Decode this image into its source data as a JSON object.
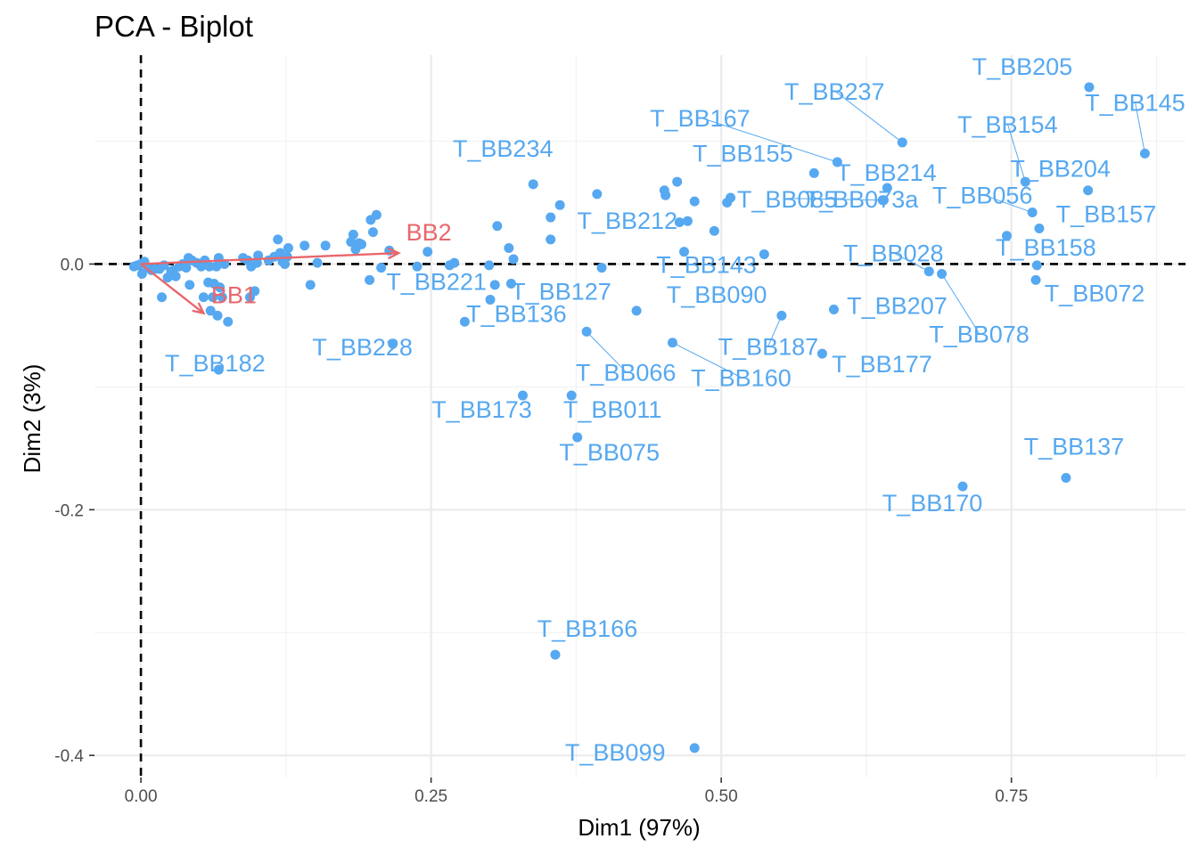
{
  "chart_data": {
    "type": "scatter",
    "title": "PCA - Biplot",
    "xlabel": "Dim1 (97%)",
    "ylabel": "Dim2 (3%)",
    "xlim": [
      -0.04,
      0.9
    ],
    "ylim": [
      -0.418,
      0.17
    ],
    "x_ticks": [
      0.0,
      0.25,
      0.5,
      0.75
    ],
    "x_tick_labels": [
      "0.00",
      "0.25",
      "0.50",
      "0.75"
    ],
    "y_ticks": [
      0.0,
      -0.2,
      -0.4
    ],
    "y_tick_labels": [
      "0.0",
      "-0.2",
      "-0.4"
    ],
    "grid": true,
    "reference_lines": {
      "x": 0,
      "y": 0,
      "style": "dashed"
    },
    "colors": {
      "individuals": "#56a8f0",
      "variables": "#e8676c"
    },
    "variables": [
      {
        "name": "BB1",
        "x": 0.054,
        "y": -0.04
      },
      {
        "name": "BB2",
        "x": 0.222,
        "y": 0.009
      }
    ],
    "labeled_points": [
      {
        "label": "T_BB205",
        "x": 0.817,
        "y": 0.144
      },
      {
        "label": "T_BB237",
        "x": 0.656,
        "y": 0.099
      },
      {
        "label": "T_BB145",
        "x": 0.865,
        "y": 0.09
      },
      {
        "label": "T_BB167",
        "x": 0.6,
        "y": 0.083
      },
      {
        "label": "T_BB154",
        "x": 0.762,
        "y": 0.067
      },
      {
        "label": "T_BB204",
        "x": 0.816,
        "y": 0.06
      },
      {
        "label": "T_BB214",
        "x": 0.643,
        "y": 0.062
      },
      {
        "label": "T_BB155",
        "x": 0.58,
        "y": 0.074
      },
      {
        "label": "T_BB234",
        "x": 0.338,
        "y": 0.065
      },
      {
        "label": "T_BB056",
        "x": 0.768,
        "y": 0.042
      },
      {
        "label": "T_BB085",
        "x": 0.639,
        "y": 0.052
      },
      {
        "label": "T_BB073a",
        "x": 0.64,
        "y": 0.052
      },
      {
        "label": "T_BB157",
        "x": 0.774,
        "y": 0.029
      },
      {
        "label": "T_BB212",
        "x": 0.353,
        "y": 0.02
      },
      {
        "label": "T_BB028",
        "x": 0.679,
        "y": -0.006
      },
      {
        "label": "T_BB158",
        "x": 0.772,
        "y": -0.001
      },
      {
        "label": "T_BB143",
        "x": 0.468,
        "y": 0.01
      },
      {
        "label": "T_BB127",
        "x": 0.319,
        "y": -0.016
      },
      {
        "label": "T_BB221",
        "x": 0.197,
        "y": -0.013
      },
      {
        "label": "T_BB072",
        "x": 0.771,
        "y": -0.013
      },
      {
        "label": "T_BB207",
        "x": 0.597,
        "y": -0.037
      },
      {
        "label": "T_BB078",
        "x": 0.69,
        "y": -0.008
      },
      {
        "label": "T_BB090",
        "x": 0.427,
        "y": -0.038
      },
      {
        "label": "T_BB136",
        "x": 0.279,
        "y": -0.047
      },
      {
        "label": "T_BB182",
        "x": 0.067,
        "y": -0.086
      },
      {
        "label": "T_BB228",
        "x": 0.217,
        "y": -0.065
      },
      {
        "label": "T_BB187",
        "x": 0.552,
        "y": -0.042
      },
      {
        "label": "T_BB066",
        "x": 0.384,
        "y": -0.055
      },
      {
        "label": "T_BB160",
        "x": 0.458,
        "y": -0.064
      },
      {
        "label": "T_BB177",
        "x": 0.587,
        "y": -0.073
      },
      {
        "label": "T_BB173",
        "x": 0.329,
        "y": -0.107
      },
      {
        "label": "T_BB011",
        "x": 0.371,
        "y": -0.107
      },
      {
        "label": "T_BB075",
        "x": 0.376,
        "y": -0.141
      },
      {
        "label": "T_BB137",
        "x": 0.797,
        "y": -0.174
      },
      {
        "label": "T_BB170",
        "x": 0.708,
        "y": -0.181
      },
      {
        "label": "T_BB166",
        "x": 0.357,
        "y": -0.318
      },
      {
        "label": "T_BB099",
        "x": 0.477,
        "y": -0.394
      }
    ],
    "unlabeled_points": [
      [
        -0.006,
        -0.002
      ],
      [
        -0.003,
        -0.001
      ],
      [
        0.0,
        0.0
      ],
      [
        0.001,
        -0.008
      ],
      [
        0.003,
        0.002
      ],
      [
        0.006,
        -0.003
      ],
      [
        0.009,
        -0.005
      ],
      [
        0.012,
        -0.004
      ],
      [
        0.016,
        -0.004
      ],
      [
        0.018,
        -0.027
      ],
      [
        0.02,
        -0.001
      ],
      [
        0.023,
        -0.011
      ],
      [
        0.026,
        -0.006
      ],
      [
        0.028,
        -0.005
      ],
      [
        0.03,
        -0.01
      ],
      [
        0.033,
        -0.002
      ],
      [
        0.036,
        0.0
      ],
      [
        0.039,
        -0.003
      ],
      [
        0.041,
        0.005
      ],
      [
        0.042,
        -0.017
      ],
      [
        0.044,
        0.003
      ],
      [
        0.048,
        0.001
      ],
      [
        0.052,
        -0.002
      ],
      [
        0.054,
        -0.027
      ],
      [
        0.055,
        0.003
      ],
      [
        0.058,
        -0.015
      ],
      [
        0.059,
        -0.002
      ],
      [
        0.06,
        -0.038
      ],
      [
        0.062,
        -0.027
      ],
      [
        0.063,
        -0.016
      ],
      [
        0.065,
        -0.002
      ],
      [
        0.066,
        -0.042
      ],
      [
        0.067,
        0.005
      ],
      [
        0.068,
        -0.019
      ],
      [
        0.07,
        -0.027
      ],
      [
        0.072,
        0.0
      ],
      [
        0.075,
        -0.047
      ],
      [
        0.088,
        0.005
      ],
      [
        0.092,
        0.003
      ],
      [
        0.094,
        -0.027
      ],
      [
        0.095,
        -0.002
      ],
      [
        0.098,
        -0.022
      ],
      [
        0.1,
        0.001
      ],
      [
        0.101,
        0.007
      ],
      [
        0.11,
        0.003
      ],
      [
        0.115,
        0.006
      ],
      [
        0.118,
        0.02
      ],
      [
        0.12,
        0.009
      ],
      [
        0.122,
        0.002
      ],
      [
        0.124,
        0.0
      ],
      [
        0.126,
        0.006
      ],
      [
        0.127,
        0.013
      ],
      [
        0.141,
        0.015
      ],
      [
        0.146,
        -0.017
      ],
      [
        0.152,
        0.001
      ],
      [
        0.159,
        0.015
      ],
      [
        0.181,
        0.018
      ],
      [
        0.183,
        0.024
      ],
      [
        0.185,
        0.012
      ],
      [
        0.188,
        0.017
      ],
      [
        0.19,
        0.016
      ],
      [
        0.198,
        0.036
      ],
      [
        0.2,
        0.026
      ],
      [
        0.203,
        0.04
      ],
      [
        0.207,
        -0.003
      ],
      [
        0.214,
        0.011
      ],
      [
        0.238,
        -0.002
      ],
      [
        0.247,
        0.01
      ],
      [
        0.266,
        -0.001
      ],
      [
        0.27,
        0.001
      ],
      [
        0.3,
        -0.001
      ],
      [
        0.301,
        -0.029
      ],
      [
        0.305,
        -0.017
      ],
      [
        0.307,
        0.031
      ],
      [
        0.317,
        0.013
      ],
      [
        0.321,
        0.004
      ],
      [
        0.353,
        0.038
      ],
      [
        0.361,
        0.048
      ],
      [
        0.393,
        0.057
      ],
      [
        0.397,
        -0.003
      ],
      [
        0.451,
        0.06
      ],
      [
        0.452,
        0.056
      ],
      [
        0.462,
        0.067
      ],
      [
        0.464,
        0.034
      ],
      [
        0.471,
        0.035
      ],
      [
        0.477,
        0.051
      ],
      [
        0.494,
        0.027
      ],
      [
        0.505,
        0.05
      ],
      [
        0.508,
        0.054
      ],
      [
        0.537,
        0.008
      ],
      [
        0.746,
        0.023
      ]
    ]
  }
}
